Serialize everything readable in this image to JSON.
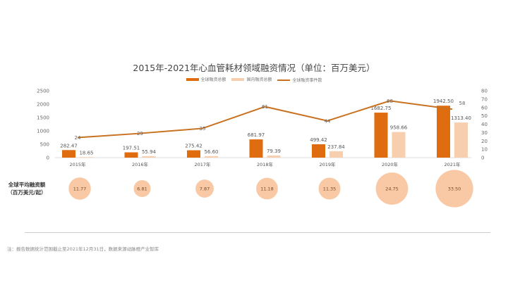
{
  "chart_data": {
    "type": "bar",
    "title": "2015年-2021年心血管耗材领域融资情况（单位：百万美元）",
    "categories": [
      "2015年",
      "2016年",
      "2017年",
      "2018年",
      "2019年",
      "2020年",
      "2021年"
    ],
    "series": [
      {
        "name": "全球融资总额",
        "type": "bar",
        "axis": "left",
        "color": "#e06c10",
        "values": [
          282.47,
          197.51,
          275.42,
          681.97,
          499.42,
          1682.75,
          1942.5
        ],
        "labels": [
          "282.47",
          "197.51",
          "275.42",
          "681.97",
          "499.42",
          "1682.75",
          "1942.50"
        ]
      },
      {
        "name": "国内融资总额",
        "type": "bar",
        "axis": "left",
        "color": "#f8cfae",
        "values": [
          18.65,
          55.94,
          56.6,
          79.39,
          237.84,
          958.66,
          1313.4
        ],
        "labels": [
          "18.65",
          "55.94",
          "56.60",
          "79.39",
          "237.84",
          "958.66",
          "1313.40"
        ]
      },
      {
        "name": "全球融资事件数",
        "type": "line",
        "axis": "right",
        "color": "#c8711f",
        "values": [
          24,
          29,
          35,
          61,
          44,
          68,
          58
        ],
        "labels": [
          "24",
          "29",
          "35",
          "61",
          "44",
          "68",
          "58"
        ]
      }
    ],
    "ylim": [
      0,
      2500
    ],
    "yticks": [
      "0",
      "500",
      "1000",
      "1500",
      "2000",
      "2500"
    ],
    "y2lim": [
      0,
      80
    ],
    "y2ticks": [
      "0",
      "10",
      "20",
      "30",
      "40",
      "50",
      "60",
      "70",
      "80"
    ],
    "legend_position": "top-center",
    "bubble_row": {
      "label_line1": "全球平均融资额",
      "label_line2": "（百万美元/起）",
      "values": [
        11.77,
        6.81,
        7.87,
        11.18,
        11.35,
        24.75,
        33.5
      ],
      "labels": [
        "11.77",
        "6.81",
        "7.87",
        "11.18",
        "11.35",
        "24.75",
        "33.50"
      ],
      "color": "#f8c9a4"
    }
  },
  "note": "注：报告数据统计范围截止至2021年12月31日，数据来源动脉橙产业智库"
}
